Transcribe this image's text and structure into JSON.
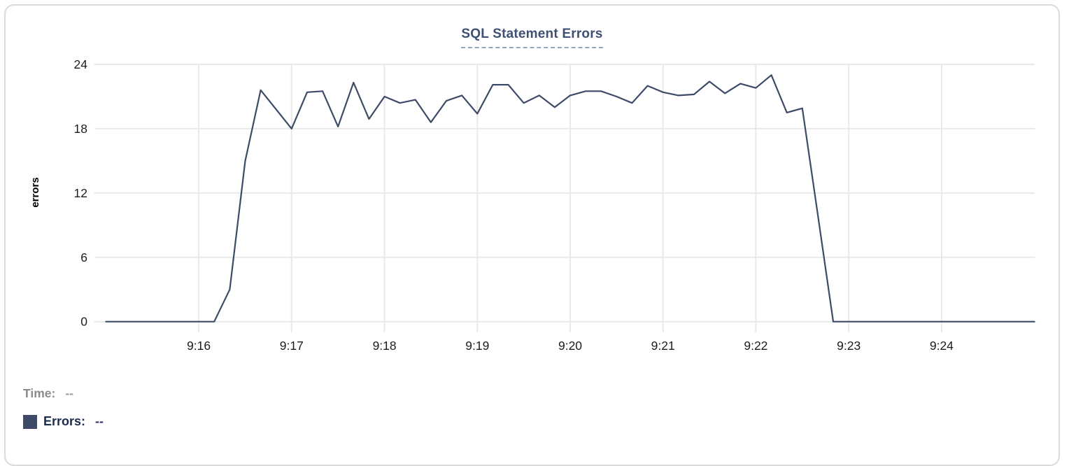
{
  "chart_data": {
    "type": "line",
    "title": "SQL Statement Errors",
    "xlabel": "",
    "ylabel": "errors",
    "x_start": "9:15:00",
    "x_end": "9:25:00",
    "sample_interval_seconds": 10,
    "x_ticks": [
      "9:16",
      "9:17",
      "9:18",
      "9:19",
      "9:20",
      "9:21",
      "9:22",
      "9:23",
      "9:24"
    ],
    "y_ticks": [
      0,
      6,
      12,
      18,
      24
    ],
    "ylim": [
      0,
      24
    ],
    "grid": true,
    "legend_position": "bottom-left",
    "series": [
      {
        "name": "Errors",
        "color": "#3d4b68",
        "values": [
          0,
          0,
          0,
          0,
          0,
          0,
          0,
          0,
          3,
          15,
          21.6,
          19.8,
          18,
          21.4,
          21.5,
          18.2,
          22.3,
          18.9,
          21.0,
          20.4,
          20.7,
          18.6,
          20.6,
          21.1,
          19.4,
          22.1,
          22.1,
          20.4,
          21.1,
          20,
          21.1,
          21.5,
          21.5,
          21,
          20.4,
          22,
          21.4,
          21.1,
          21.2,
          22.4,
          21.3,
          22.2,
          21.8,
          23,
          19.5,
          19.9,
          10,
          0,
          0,
          0,
          0,
          0,
          0,
          0,
          0,
          0,
          0,
          0,
          0,
          0,
          0
        ]
      }
    ]
  },
  "readout": {
    "time_label": "Time:",
    "time_value": "--",
    "errors_label": "Errors:",
    "errors_value": "--"
  },
  "colors": {
    "series_line": "#3d4b68",
    "title_text": "#3e5073",
    "title_dash": "#97a5c1",
    "grid_line": "#e9e9e9",
    "tick_text": "#1c1c1c",
    "card_border": "#dadada",
    "time_text": "#8b8b8b",
    "errors_text": "#1d2b4d"
  }
}
